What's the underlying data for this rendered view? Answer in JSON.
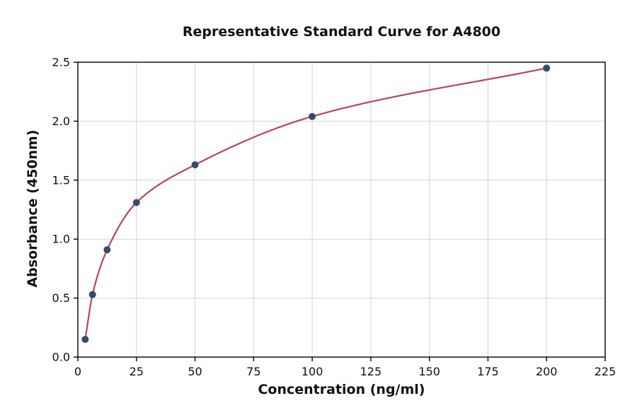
{
  "chart_data": {
    "type": "scatter",
    "title": "Representative Standard Curve for A4800",
    "xlabel": "Concentration (ng/ml)",
    "ylabel": "Absorbance (450nm)",
    "xlim": [
      0,
      225
    ],
    "ylim": [
      0,
      2.5
    ],
    "xticks": [
      0,
      25,
      50,
      75,
      100,
      125,
      150,
      175,
      200,
      225
    ],
    "yticks": [
      0,
      0.5,
      1,
      1.5,
      2,
      2.5
    ],
    "ytick_labels": [
      "0.0",
      "0.5",
      "1.0",
      "1.5",
      "2.0",
      "2.5"
    ],
    "grid": true,
    "legend": false,
    "points": {
      "x": [
        3.125,
        6.25,
        12.5,
        25,
        50,
        100,
        200
      ],
      "y": [
        0.15,
        0.53,
        0.91,
        1.31,
        1.63,
        2.04,
        2.45
      ]
    },
    "curve": {
      "type": "smooth-fit-through-points"
    },
    "colors": {
      "curve": "#b5446b",
      "marker": "#374b68",
      "grid": "#d4d4d4",
      "axis": "#000000"
    }
  }
}
